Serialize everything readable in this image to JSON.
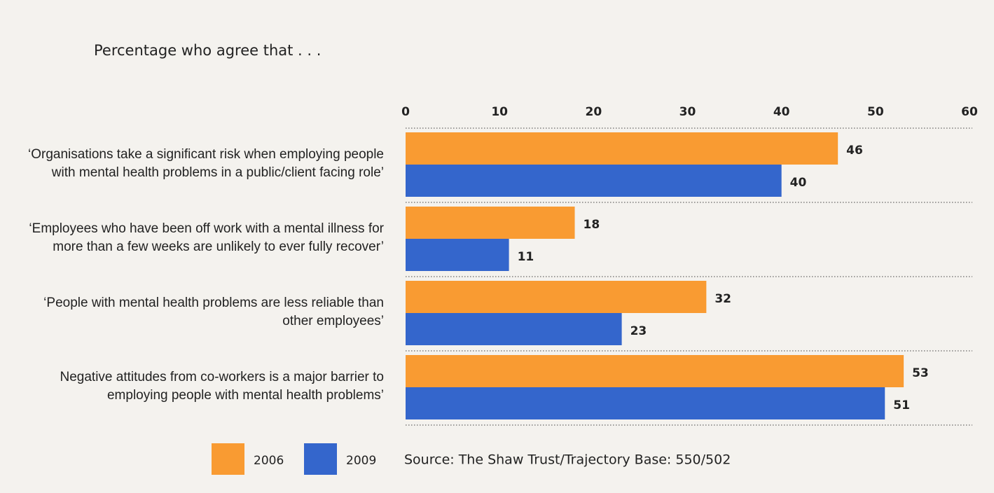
{
  "chart_data": {
    "type": "bar",
    "orientation": "horizontal",
    "title": "Percentage who agree that . . .",
    "categories": [
      "‘Organisations take a significant risk when employing people with mental health problems in a public/client facing role’",
      "‘Employees who have been off work with a mental illness for more than a few weeks are unlikely to ever fully recover’",
      "‘People with mental health problems are less reliable than other employees’",
      "Negative attitudes from co-workers is a major barrier to employing people with mental health problems’"
    ],
    "series": [
      {
        "name": "2006",
        "color": "#f99b32",
        "values": [
          46,
          18,
          32,
          53
        ]
      },
      {
        "name": "2009",
        "color": "#3466cc",
        "values": [
          40,
          11,
          23,
          51
        ]
      }
    ],
    "xlim": [
      0,
      60
    ],
    "xticks": [
      0,
      10,
      20,
      30,
      40,
      50,
      60
    ],
    "grid": true,
    "legend": "bottom-left",
    "source": "Source: The Shaw Trust/Trajectory  Base: 550/502"
  }
}
